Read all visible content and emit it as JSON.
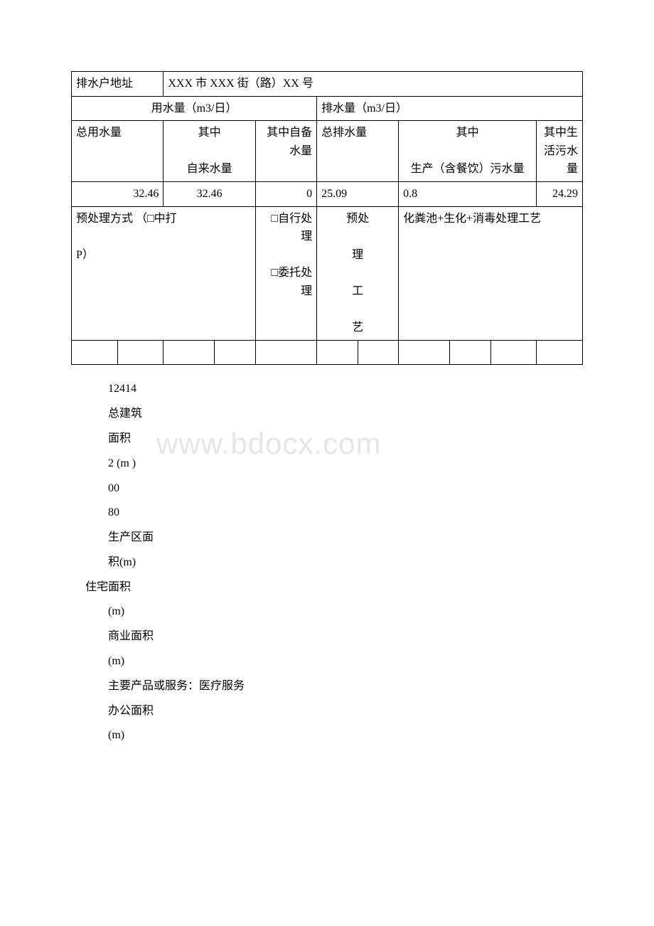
{
  "table": {
    "colgroup_widths": [
      "9%",
      "9%",
      "10%",
      "8%",
      "12%",
      "8%",
      "8%",
      "10%",
      "8%",
      "9%",
      "9%"
    ],
    "row1": {
      "addr_label": "排水户地址",
      "addr_value": "XXX 市 XXX 街（路）XX 号"
    },
    "row2": {
      "water_use_label": "用水量（m3/日）",
      "water_drain_label": "排水量（m3/日）"
    },
    "row3": {
      "total_water_label": "总用水量",
      "tap_water_label": "其中\n\n自来水量",
      "reserve_water_label": "其中自备水量",
      "total_drain_label": "总排水量",
      "prod_water_label": "其中\n\n生产（含餐饮）污水量",
      "life_water_label": "其中生活污水量"
    },
    "row4": {
      "total_water": "32.46",
      "tap_water": "32.46",
      "reserve_water": "0",
      "total_drain": "25.09",
      "prod_water": "0.8",
      "life_water": "24.29"
    },
    "row5": {
      "pretreat_label": "预处理方式 （□中打\n\nP）",
      "pretreat_options": "□自行处理\n\n□委托处理",
      "process_label": "预处\n\n理\n\n工\n\n艺",
      "process_value": "化粪池+生化+消毒处理工艺"
    }
  },
  "paragraphs": [
    {
      "text": "12414",
      "indent": true
    },
    {
      "text": "总建筑",
      "indent": true
    },
    {
      "text": "面积",
      "indent": true
    },
    {
      "text": "2 (m )",
      "indent": true
    },
    {
      "text": "00",
      "indent": true
    },
    {
      "text": "80",
      "indent": true
    },
    {
      "text": "生产区面",
      "indent": true
    },
    {
      "text": "积(m)",
      "indent": true
    },
    {
      "text": "住宅面积",
      "indent": false
    },
    {
      "text": "(m)",
      "indent": true
    },
    {
      "text": "商业面积",
      "indent": true
    },
    {
      "text": "(m)",
      "indent": true
    },
    {
      "text": "主要产品或服务：医疗服务",
      "indent": true
    },
    {
      "text": "办公面积",
      "indent": true
    },
    {
      "text": "(m)",
      "indent": true
    }
  ],
  "watermark": "www.bdocx.com"
}
